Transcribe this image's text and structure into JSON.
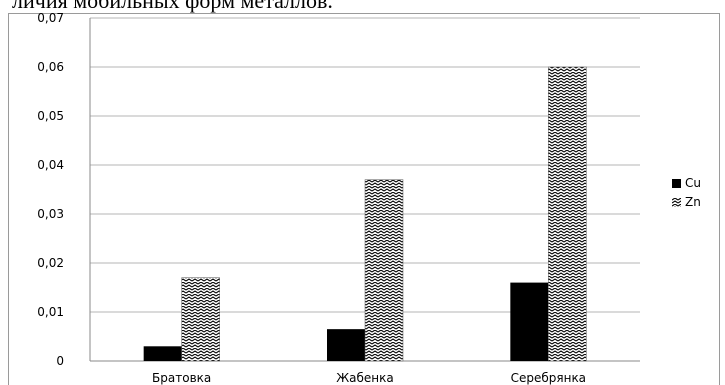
{
  "caption": "личия мобильных форм металлов.",
  "chart_data": {
    "type": "bar",
    "categories": [
      "Братовка",
      "Жабенка",
      "Серебрянка"
    ],
    "series": [
      {
        "name": "Cu",
        "values": [
          0.003,
          0.0065,
          0.016
        ],
        "fill": "solid",
        "color": "#000000"
      },
      {
        "name": "Zn",
        "values": [
          0.017,
          0.037,
          0.06
        ],
        "fill": "hatch",
        "color": "#000000"
      }
    ],
    "yticks": [
      "0",
      "0,01",
      "0,02",
      "0,03",
      "0,04",
      "0,05",
      "0,06",
      "0,07"
    ],
    "ylim": [
      0,
      0.07
    ],
    "grid": true,
    "legend_position": "right"
  }
}
